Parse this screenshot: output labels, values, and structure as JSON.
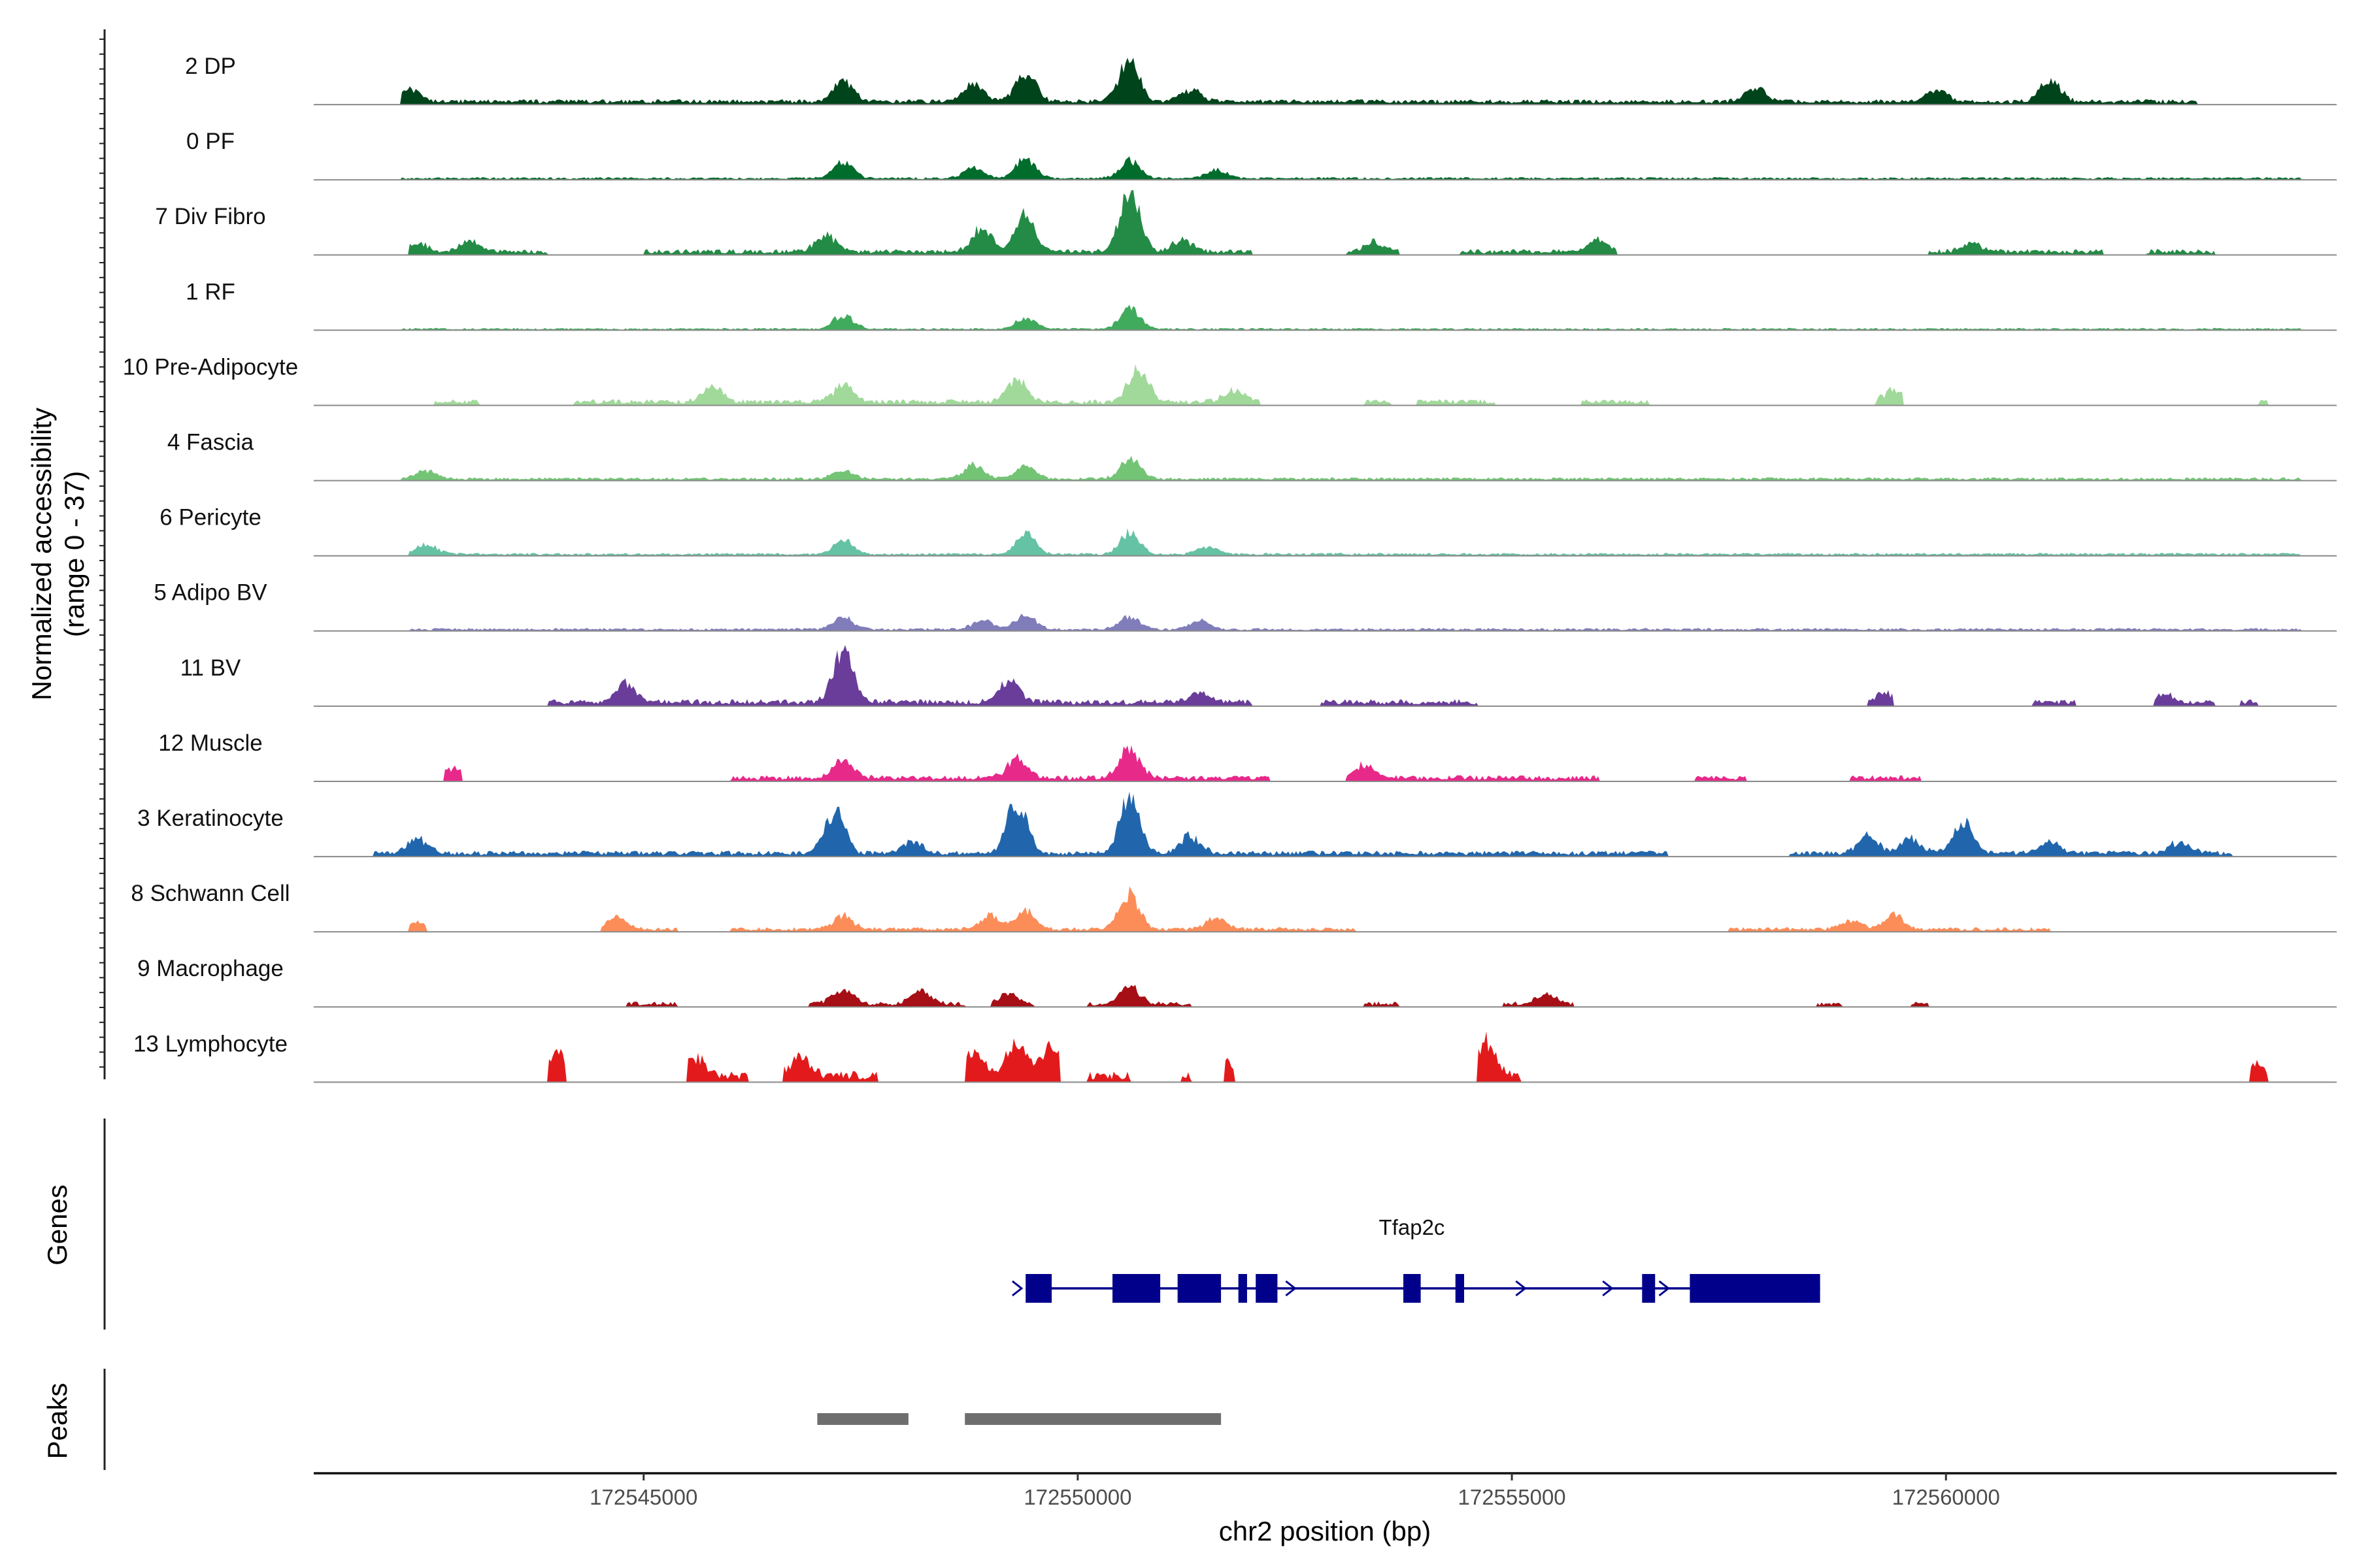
{
  "chart_data": {
    "type": "area",
    "title": "",
    "chromosome": "chr2",
    "xlabel": "chr2 position (bp)",
    "ylabel_line1": "Normalized accessibility",
    "ylabel_line2": "(range 0 - 37)",
    "y_range": [
      0,
      37
    ],
    "xlim": [
      172541200,
      172564500
    ],
    "x_ticks": [
      172545000,
      172550000,
      172555000,
      172560000
    ],
    "x_tick_labels": [
      "172545000",
      "172550000",
      "172555000",
      "172560000"
    ],
    "genes_track_label": "Genes",
    "peaks_track_label": "Peaks",
    "tracks": [
      {
        "name": "2 DP",
        "color": "#00441b",
        "level": 0.65,
        "base": 0.1,
        "peaks": [
          [
            172542300,
            0.3
          ],
          [
            172547300,
            0.45
          ],
          [
            172548800,
            0.4
          ],
          [
            172549400,
            0.7
          ],
          [
            172550600,
            1.0
          ],
          [
            172551300,
            0.3
          ],
          [
            172557800,
            0.35
          ],
          [
            172559900,
            0.3
          ],
          [
            172561200,
            0.55
          ]
        ],
        "islands": [
          [
            172542200,
            172547000
          ],
          [
            172547000,
            172552300
          ],
          [
            172552300,
            172557400
          ],
          [
            172557400,
            172562900
          ]
        ]
      },
      {
        "name": "0 PF",
        "color": "#006d2c",
        "level": 0.55,
        "base": 0.06,
        "peaks": [
          [
            172547300,
            0.45
          ],
          [
            172548800,
            0.3
          ],
          [
            172549400,
            0.55
          ],
          [
            172550600,
            0.5
          ],
          [
            172551600,
            0.25
          ]
        ],
        "islands": [
          [
            172542200,
            172564100
          ]
        ]
      },
      {
        "name": "7 Div Fibro",
        "color": "#238b45",
        "level": 0.9,
        "base": 0.08,
        "peaks": [
          [
            172542400,
            0.15
          ],
          [
            172543000,
            0.18
          ],
          [
            172547100,
            0.3
          ],
          [
            172548900,
            0.4
          ],
          [
            172549400,
            0.6
          ],
          [
            172550600,
            1.0
          ],
          [
            172551200,
            0.2
          ],
          [
            172553400,
            0.15
          ],
          [
            172556000,
            0.2
          ],
          [
            172560300,
            0.15
          ]
        ],
        "islands": [
          [
            172542300,
            172543900
          ],
          [
            172545000,
            172552000
          ],
          [
            172553100,
            172553700
          ],
          [
            172554400,
            172556200
          ],
          [
            172559800,
            172561800
          ],
          [
            172562300,
            172563100
          ]
        ]
      },
      {
        "name": "1 RF",
        "color": "#41ab5d",
        "level": 0.55,
        "base": 0.05,
        "peaks": [
          [
            172547300,
            0.4
          ],
          [
            172549400,
            0.3
          ],
          [
            172550600,
            0.55
          ]
        ],
        "islands": [
          [
            172542200,
            172564100
          ]
        ]
      },
      {
        "name": "10 Pre-Adipocyte",
        "color": "#a1d99b",
        "level": 0.75,
        "base": 0.1,
        "peaks": [
          [
            172545800,
            0.3
          ],
          [
            172547300,
            0.35
          ],
          [
            172549300,
            0.45
          ],
          [
            172550700,
            0.7
          ],
          [
            172551800,
            0.25
          ],
          [
            172559400,
            0.25
          ]
        ],
        "islands": [
          [
            172542600,
            172543100
          ],
          [
            172544200,
            172552100
          ],
          [
            172553300,
            172553600
          ],
          [
            172553900,
            172554800
          ],
          [
            172555800,
            172556600
          ],
          [
            172559200,
            172559500
          ],
          [
            172563600,
            172563700
          ]
        ]
      },
      {
        "name": "4 Fascia",
        "color": "#74c476",
        "level": 0.5,
        "base": 0.08,
        "peaks": [
          [
            172542500,
            0.25
          ],
          [
            172547300,
            0.25
          ],
          [
            172548800,
            0.4
          ],
          [
            172549400,
            0.4
          ],
          [
            172550600,
            0.6
          ]
        ],
        "islands": [
          [
            172542200,
            172564100
          ]
        ]
      },
      {
        "name": "6 Pericyte",
        "color": "#66c2a4",
        "level": 0.6,
        "base": 0.06,
        "peaks": [
          [
            172542500,
            0.25
          ],
          [
            172547300,
            0.35
          ],
          [
            172549400,
            0.5
          ],
          [
            172550600,
            0.55
          ],
          [
            172551500,
            0.2
          ]
        ],
        "islands": [
          [
            172542300,
            172564100
          ]
        ]
      },
      {
        "name": "5 Adipo BV",
        "color": "#807dba",
        "level": 0.45,
        "base": 0.08,
        "peaks": [
          [
            172547300,
            0.4
          ],
          [
            172548900,
            0.3
          ],
          [
            172549400,
            0.5
          ],
          [
            172550600,
            0.45
          ],
          [
            172551400,
            0.3
          ]
        ],
        "islands": [
          [
            172542300,
            172564100
          ]
        ]
      },
      {
        "name": "11 BV",
        "color": "#6a3d9a",
        "level": 0.85,
        "base": 0.1,
        "peaks": [
          [
            172544800,
            0.35
          ],
          [
            172547300,
            1.0
          ],
          [
            172549200,
            0.4
          ],
          [
            172551400,
            0.2
          ],
          [
            172559300,
            0.15
          ],
          [
            172562500,
            0.15
          ]
        ],
        "islands": [
          [
            172543900,
            172552000
          ],
          [
            172552800,
            172554600
          ],
          [
            172559100,
            172559400
          ],
          [
            172561000,
            172561500
          ],
          [
            172562400,
            172563100
          ],
          [
            172563400,
            172563600
          ]
        ]
      },
      {
        "name": "12 Muscle",
        "color": "#e7298a",
        "level": 0.75,
        "base": 0.1,
        "peaks": [
          [
            172542800,
            0.2
          ],
          [
            172547300,
            0.35
          ],
          [
            172549300,
            0.4
          ],
          [
            172550600,
            0.6
          ],
          [
            172553300,
            0.25
          ]
        ],
        "islands": [
          [
            172542700,
            172542900
          ],
          [
            172546000,
            172552200
          ],
          [
            172553100,
            172556000
          ],
          [
            172557100,
            172557700
          ],
          [
            172558900,
            172559700
          ]
        ]
      },
      {
        "name": "3 Keratinocyte",
        "color": "#2166ac",
        "level": 0.9,
        "base": 0.08,
        "peaks": [
          [
            172542400,
            0.25
          ],
          [
            172547200,
            0.7
          ],
          [
            172548100,
            0.2
          ],
          [
            172549300,
            0.85
          ],
          [
            172550600,
            0.95
          ],
          [
            172551300,
            0.3
          ],
          [
            172559100,
            0.3
          ],
          [
            172559600,
            0.25
          ],
          [
            172560200,
            0.5
          ],
          [
            172561200,
            0.2
          ],
          [
            172562700,
            0.2
          ]
        ],
        "islands": [
          [
            172541900,
            172551800
          ],
          [
            172551800,
            172556800
          ],
          [
            172558200,
            172563300
          ]
        ]
      },
      {
        "name": "8 Schwann Cell",
        "color": "#fc8d59",
        "level": 0.7,
        "base": 0.08,
        "peaks": [
          [
            172542400,
            0.15
          ],
          [
            172544700,
            0.25
          ],
          [
            172547300,
            0.3
          ],
          [
            172549000,
            0.3
          ],
          [
            172549400,
            0.4
          ],
          [
            172550600,
            0.75
          ],
          [
            172551600,
            0.25
          ],
          [
            172558900,
            0.2
          ],
          [
            172559400,
            0.3
          ]
        ],
        "islands": [
          [
            172542300,
            172542500
          ],
          [
            172544500,
            172545400
          ],
          [
            172546000,
            172553200
          ],
          [
            172557500,
            172561200
          ]
        ]
      },
      {
        "name": "9 Macrophage",
        "color": "#a50f15",
        "level": 0.55,
        "base": 0.12,
        "peaks": [
          [
            172547300,
            0.4
          ],
          [
            172548200,
            0.35
          ],
          [
            172549200,
            0.3
          ],
          [
            172550600,
            0.5
          ],
          [
            172555400,
            0.25
          ]
        ],
        "islands": [
          [
            172544800,
            172545400
          ],
          [
            172546900,
            172548700
          ],
          [
            172549000,
            172549500
          ],
          [
            172550100,
            172551300
          ],
          [
            172553300,
            172553700
          ],
          [
            172554900,
            172555700
          ],
          [
            172558500,
            172558800
          ],
          [
            172559600,
            172559800
          ]
        ]
      },
      {
        "name": "13 Lymphocyte",
        "color": "#e31a1c",
        "level": 0.9,
        "base": 0.15,
        "peaks": [
          [
            172544000,
            0.4
          ],
          [
            172545600,
            0.3
          ],
          [
            172546800,
            0.3
          ],
          [
            172548800,
            0.4
          ],
          [
            172549300,
            0.55
          ],
          [
            172549700,
            0.5
          ],
          [
            172551700,
            0.25
          ],
          [
            172554700,
            0.55
          ],
          [
            172563600,
            0.2
          ]
        ],
        "islands": [
          [
            172543900,
            172544100
          ],
          [
            172545500,
            172546200
          ],
          [
            172546600,
            172547700
          ],
          [
            172548700,
            172549800
          ],
          [
            172550100,
            172550600
          ],
          [
            172551200,
            172551300
          ],
          [
            172551700,
            172551800
          ],
          [
            172554600,
            172555100
          ],
          [
            172563500,
            172563700
          ]
        ]
      }
    ],
    "gene": {
      "name": "Tfap2c",
      "color": "#00008b",
      "strand": "+",
      "start": 172549400,
      "end": 172558550,
      "exons": [
        [
          172549400,
          172549700
        ],
        [
          172550400,
          172550950
        ],
        [
          172551150,
          172551650
        ],
        [
          172551850,
          172551950
        ],
        [
          172552050,
          172552300
        ],
        [
          172553750,
          172553950
        ],
        [
          172554350,
          172554450
        ],
        [
          172556500,
          172556650
        ],
        [
          172557050,
          172558550
        ]
      ],
      "strand_arrows": [
        172549300,
        172552450,
        172555100,
        172556100,
        172556750
      ]
    },
    "peaks_track": {
      "color": "#6e6e6e",
      "ranges": [
        [
          172547000,
          172548050
        ],
        [
          172548700,
          172551650
        ]
      ]
    }
  }
}
